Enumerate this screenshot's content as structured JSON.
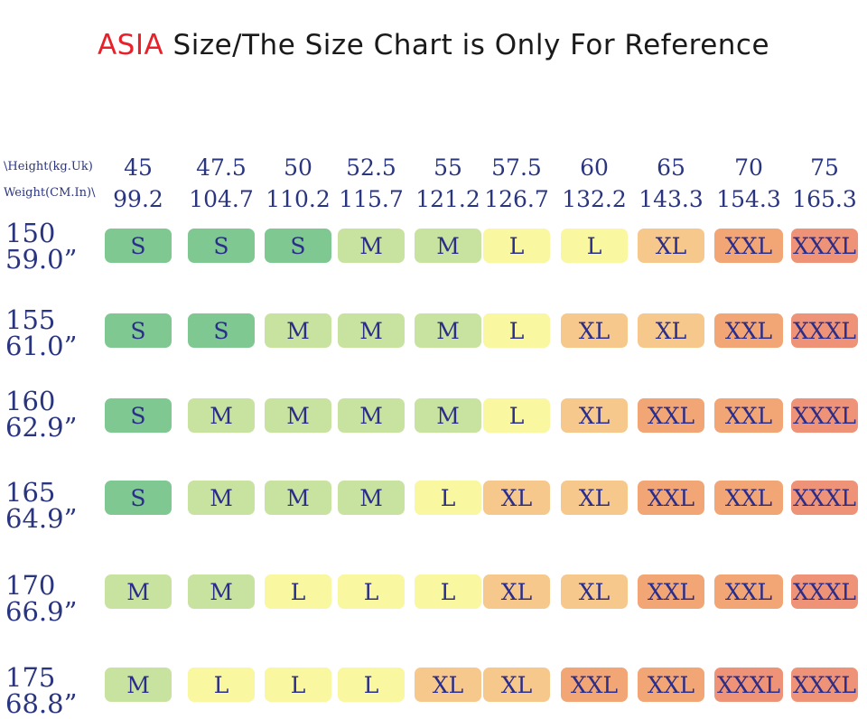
{
  "title": {
    "accent": "ASIA",
    "rest": " Size/The Size Chart is Only For Reference"
  },
  "axis": {
    "weight_label": "\\Height(kg.Uk)",
    "height_label": "Weight(CM.In)\\"
  },
  "weights_kg": [
    "45",
    "47.5",
    "50",
    "52.5",
    "55",
    "57.5",
    "60",
    "65",
    "70",
    "75"
  ],
  "weights_lb": [
    "99.2",
    "104.7",
    "110.2",
    "115.7",
    "121.2",
    "126.7",
    "132.2",
    "143.3",
    "154.3",
    "165.3"
  ],
  "size_colors": {
    "S": "#7fc892",
    "M": "#c8e2a0",
    "L": "#f9f7a0",
    "XL": "#f7c88c",
    "XXL": "#f2a675",
    "XXXL": "#ee9377"
  },
  "chart_data": {
    "type": "table",
    "title": "ASIA Size/The Size Chart is Only For Reference",
    "columns": [
      "45 / 99.2",
      "47.5 / 104.7",
      "50 / 110.2",
      "52.5 / 115.7",
      "55 / 121.2",
      "57.5 / 126.7",
      "60 / 132.2",
      "65 / 143.3",
      "70 / 154.3",
      "75 / 165.3"
    ],
    "rows": [
      {
        "cm": "150",
        "in": "59.0”",
        "sizes": [
          "S",
          "S",
          "S",
          "M",
          "M",
          "L",
          "L",
          "XL",
          "XXL",
          "XXXL"
        ]
      },
      {
        "cm": "155",
        "in": "61.0”",
        "sizes": [
          "S",
          "S",
          "M",
          "M",
          "M",
          "L",
          "XL",
          "XL",
          "XXL",
          "XXXL"
        ]
      },
      {
        "cm": "160",
        "in": "62.9”",
        "sizes": [
          "S",
          "M",
          "M",
          "M",
          "M",
          "L",
          "XL",
          "XXL",
          "XXL",
          "XXXL"
        ]
      },
      {
        "cm": "165",
        "in": "64.9”",
        "sizes": [
          "S",
          "M",
          "M",
          "M",
          "L",
          "XL",
          "XL",
          "XXL",
          "XXL",
          "XXXL"
        ]
      },
      {
        "cm": "170",
        "in": "66.9”",
        "sizes": [
          "M",
          "M",
          "L",
          "L",
          "L",
          "XL",
          "XL",
          "XXL",
          "XXL",
          "XXXL"
        ]
      },
      {
        "cm": "175",
        "in": "68.8”",
        "sizes": [
          "M",
          "L",
          "L",
          "L",
          "XL",
          "XL",
          "XXL",
          "XXL",
          "XXXL",
          "XXXL"
        ]
      }
    ]
  }
}
